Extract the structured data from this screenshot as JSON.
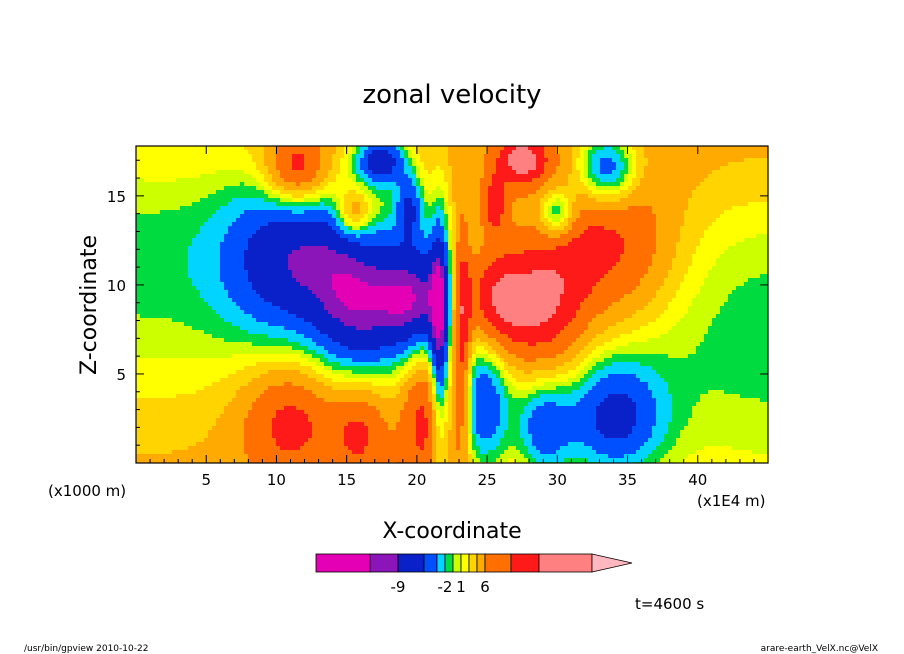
{
  "chart_data": {
    "type": "heatmap",
    "title": "zonal velocity",
    "xlabel": "X-coordinate",
    "ylabel": "Z-coordinate",
    "x_unit_left": "(x1000 m)",
    "x_unit_right": "(x1E4 m)",
    "xlim": [
      0,
      45
    ],
    "ylim": [
      0,
      17.8
    ],
    "x_ticks": [
      5,
      10,
      15,
      20,
      25,
      30,
      35,
      40
    ],
    "y_ticks": [
      5,
      10,
      15
    ],
    "colorbar": {
      "colors": [
        "#e400b5",
        "#8b15b8",
        "#0a20c8",
        "#0050ff",
        "#00d4ff",
        "#00dc40",
        "#ccff00",
        "#ffff00",
        "#ffd400",
        "#ffaa00",
        "#ff7000",
        "#ff1a1a",
        "#ff8080"
      ],
      "extend_color": "#ffb8c0",
      "labels": [
        {
          "text": "-9",
          "index": 1
        },
        {
          "text": "-2",
          "index": 4
        },
        {
          "text": "1",
          "index": 6
        },
        {
          "text": "6",
          "index": 9
        }
      ]
    },
    "fields": [
      {
        "x": 22.5,
        "z": 18.5,
        "sx": 48,
        "sz": 3.5,
        "v": 3.2
      },
      {
        "x": 22.5,
        "z": -3,
        "sx": 48,
        "sz": 6,
        "v": 3.5
      },
      {
        "x": 0,
        "z": 15,
        "sx": 12,
        "sz": 8,
        "v": -2.5
      },
      {
        "x": 45,
        "z": 2,
        "sx": 12,
        "sz": 8,
        "v": -3
      },
      {
        "x": 11.5,
        "z": 11.5,
        "sx": 3.5,
        "sz": 3.2,
        "v": -7.5
      },
      {
        "x": 15.5,
        "z": 8.5,
        "sx": 2.0,
        "sz": 3.0,
        "v": -6
      },
      {
        "x": 20,
        "z": 9,
        "sx": 2.2,
        "sz": 2.3,
        "v": -10
      },
      {
        "x": 33.5,
        "z": 12,
        "sx": 3.5,
        "sz": 3.2,
        "v": 7.5
      },
      {
        "x": 29.5,
        "z": 8.5,
        "sx": 2.0,
        "sz": 3.0,
        "v": 6
      },
      {
        "x": 25.5,
        "z": 9,
        "sx": 2.2,
        "sz": 2.3,
        "v": 10
      },
      {
        "x": 11,
        "z": 2.5,
        "sx": 2.5,
        "sz": 2.3,
        "v": 6
      },
      {
        "x": 16,
        "z": 2.0,
        "sx": 1.4,
        "sz": 2.0,
        "v": 5
      },
      {
        "x": 20.5,
        "z": 3.0,
        "sx": 1.2,
        "sz": 3.0,
        "v": 6
      },
      {
        "x": 34,
        "z": 2.5,
        "sx": 2.5,
        "sz": 2.3,
        "v": -7
      },
      {
        "x": 29,
        "z": 2.0,
        "sx": 1.4,
        "sz": 2.0,
        "v": -6
      },
      {
        "x": 24.8,
        "z": 3.5,
        "sx": 1.3,
        "sz": 3.0,
        "v": -7
      },
      {
        "x": 11.5,
        "z": 16.5,
        "sx": 1.6,
        "sz": 1.5,
        "v": 8
      },
      {
        "x": 15.5,
        "z": 14,
        "sx": 0.9,
        "sz": 1.0,
        "v": 6
      },
      {
        "x": 17.5,
        "z": 17,
        "sx": 1.3,
        "sz": 1.0,
        "v": -9
      },
      {
        "x": 19.5,
        "z": 14.5,
        "sx": 0.7,
        "sz": 1.3,
        "v": -6
      },
      {
        "x": 33.5,
        "z": 16.5,
        "sx": 1.6,
        "sz": 1.5,
        "v": -9
      },
      {
        "x": 30,
        "z": 14,
        "sx": 0.9,
        "sz": 1.0,
        "v": -7
      },
      {
        "x": 27.5,
        "z": 17,
        "sx": 1.3,
        "sz": 1.0,
        "v": 8
      },
      {
        "x": 25.5,
        "z": 14.5,
        "sx": 0.7,
        "sz": 1.3,
        "v": 6
      },
      {
        "x": 21.6,
        "z": 7,
        "sx": 0.45,
        "sz": 5.0,
        "v": -8
      },
      {
        "x": 23.2,
        "z": 7,
        "sx": 0.45,
        "sz": 5.0,
        "v": 8
      }
    ]
  },
  "time_label": "t=4600 s",
  "footer": {
    "left": "/usr/bin/gpview   2010-10-22",
    "right": "arare-earth_VelX.nc@VelX"
  }
}
